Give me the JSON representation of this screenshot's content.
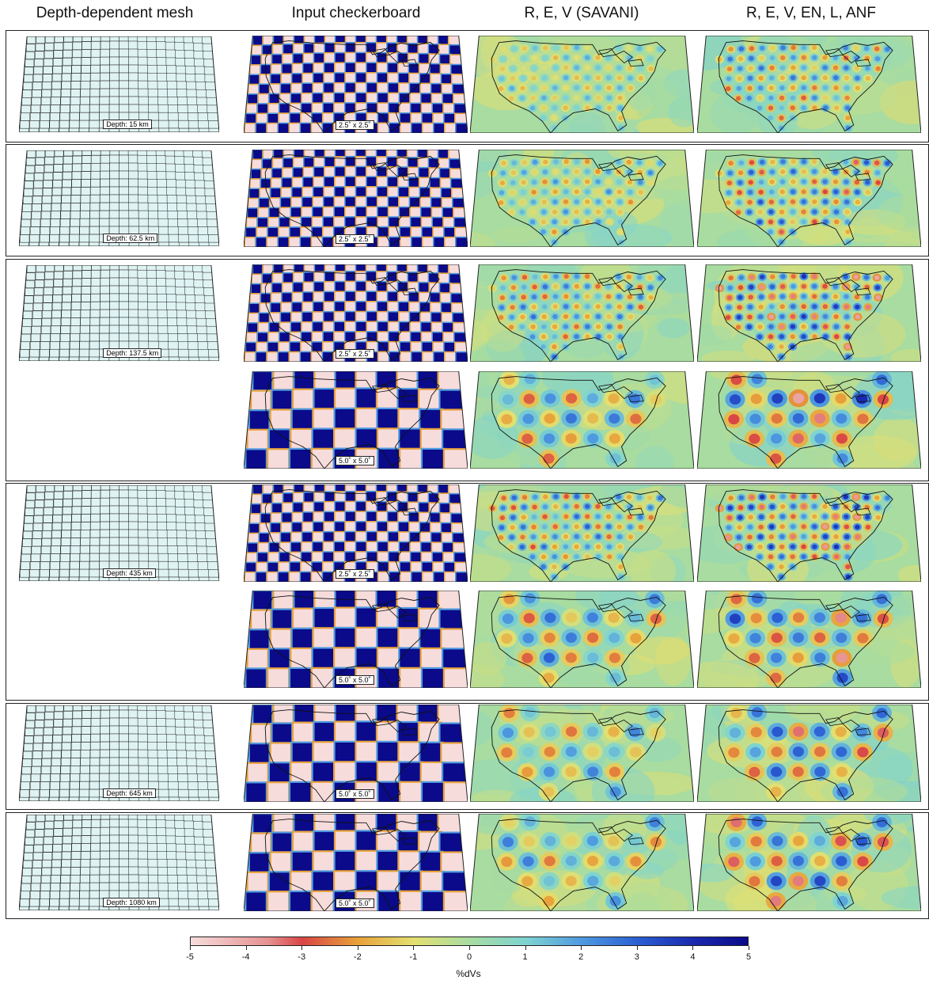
{
  "headers": {
    "col1": "Depth-dependent mesh",
    "col2": "Input checkerboard",
    "col3": "R, E, V (SAVANI)",
    "col4": "R, E, V, EN, L, ANF"
  },
  "rows": [
    {
      "depth_label": "Depth: 15 km",
      "patterns": [
        "2.5˚ x 2.5˚"
      ]
    },
    {
      "depth_label": "Depth: 62.5 km",
      "patterns": [
        "2.5˚ x 2.5˚"
      ]
    },
    {
      "depth_label": "Depth: 137.5 km",
      "patterns": [
        "2.5˚ x 2.5˚",
        "5.0˚ x 5.0˚"
      ]
    },
    {
      "depth_label": "Depth: 435 km",
      "patterns": [
        "2.5˚ x 2.5˚",
        "5.0˚ x 5.0˚"
      ]
    },
    {
      "depth_label": "Depth: 645 km",
      "patterns": [
        "5.0˚ x 5.0˚"
      ]
    },
    {
      "depth_label": "Depth: 1080 km",
      "patterns": [
        "5.0˚ x 5.0˚"
      ]
    }
  ],
  "colorbar": {
    "title": "%dVs",
    "ticks": [
      "-5",
      "-4",
      "-3",
      "-2",
      "-1",
      "0",
      "1",
      "2",
      "3",
      "4",
      "5"
    ],
    "min": -5,
    "max": 5,
    "colors": {
      "neg5": "#f7dcdc",
      "neg3": "#d94545",
      "neg2": "#e8a23a",
      "neg1": "#e3e070",
      "zero": "#a8dca0",
      "pos1": "#7fd4d0",
      "pos2": "#4f9be0",
      "pos3": "#2c60d4",
      "pos5": "#0a0a8a"
    }
  }
}
